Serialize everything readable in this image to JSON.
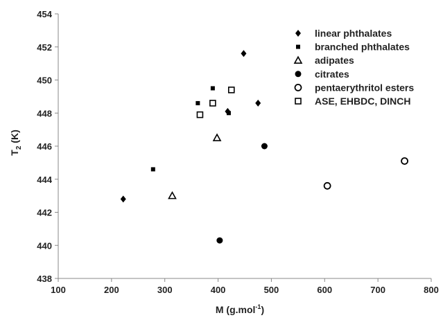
{
  "chart_data": {
    "type": "scatter",
    "title": "",
    "xlabel_main": "M (g.mol",
    "xlabel_sup": "-1",
    "xlabel_close": ")",
    "ylabel_main": "T",
    "ylabel_sub": "2",
    "ylabel_unit": " (K)",
    "xlim": [
      100,
      800
    ],
    "ylim": [
      438,
      454
    ],
    "xticks": [
      100,
      200,
      300,
      400,
      500,
      600,
      700,
      800
    ],
    "yticks": [
      438,
      440,
      442,
      444,
      446,
      448,
      450,
      452,
      454
    ],
    "grid": false,
    "legend_position": "top-right",
    "series": [
      {
        "name": "linear phthalates",
        "marker": "diamond",
        "color": "#000000",
        "points": [
          [
            222,
            442.8
          ],
          [
            418,
            448.1
          ],
          [
            448,
            451.6
          ],
          [
            475,
            448.6
          ]
        ]
      },
      {
        "name": "branched phthalates",
        "marker": "square-filled",
        "color": "#000000",
        "points": [
          [
            278,
            444.6
          ],
          [
            362,
            448.6
          ],
          [
            390,
            449.5
          ],
          [
            420,
            448.0
          ]
        ]
      },
      {
        "name": "adipates",
        "marker": "triangle-open",
        "color": "#000000",
        "points": [
          [
            314,
            443.0
          ],
          [
            398,
            446.5
          ]
        ]
      },
      {
        "name": "citrates",
        "marker": "circle-filled",
        "color": "#000000",
        "points": [
          [
            403,
            440.3
          ],
          [
            487,
            446.0
          ]
        ]
      },
      {
        "name": "pentaerythritol esters",
        "marker": "circle-open",
        "color": "#000000",
        "points": [
          [
            605,
            443.6
          ],
          [
            750,
            445.1
          ]
        ]
      },
      {
        "name": "ASE, EHBDC, DINCH",
        "marker": "square-open",
        "color": "#000000",
        "points": [
          [
            366,
            447.9
          ],
          [
            390,
            448.6
          ],
          [
            425,
            449.4
          ]
        ]
      }
    ]
  }
}
